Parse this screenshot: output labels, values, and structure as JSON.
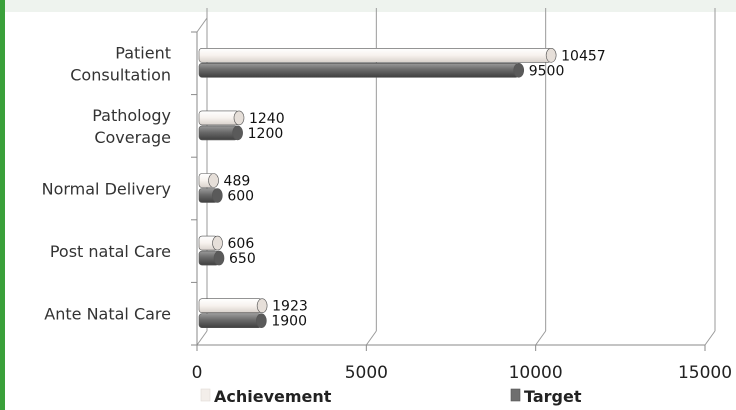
{
  "chart_data": {
    "type": "bar",
    "orientation": "horizontal",
    "categories": [
      "Patient Consultation",
      "Pathology Coverage",
      "Normal Delivery",
      "Post natal Care",
      "Ante Natal Care"
    ],
    "category_lines": [
      [
        "Patient",
        "Consultation"
      ],
      [
        "Pathology",
        "Coverage"
      ],
      [
        "Normal Delivery"
      ],
      [
        "Post natal Care"
      ],
      [
        "Ante Natal Care"
      ]
    ],
    "series": [
      {
        "name": "Achievement",
        "values": [
          10457,
          1240,
          489,
          606,
          1923
        ],
        "labels": [
          "10457",
          "1240",
          "489",
          "606",
          "1923"
        ],
        "color": "#f3eeea"
      },
      {
        "name": "Target",
        "values": [
          9500,
          1200,
          600,
          650,
          1900
        ],
        "labels": [
          "9500",
          "1200",
          "600",
          "650",
          "1900"
        ],
        "color": "#6e6e6e"
      }
    ],
    "xlim": [
      0,
      15000
    ],
    "x_ticks": [
      0,
      5000,
      10000,
      15000
    ],
    "x_tick_labels": [
      "0",
      "5000",
      "10000",
      "15000"
    ],
    "grid": true,
    "legend": "bottom",
    "style": "3d"
  }
}
